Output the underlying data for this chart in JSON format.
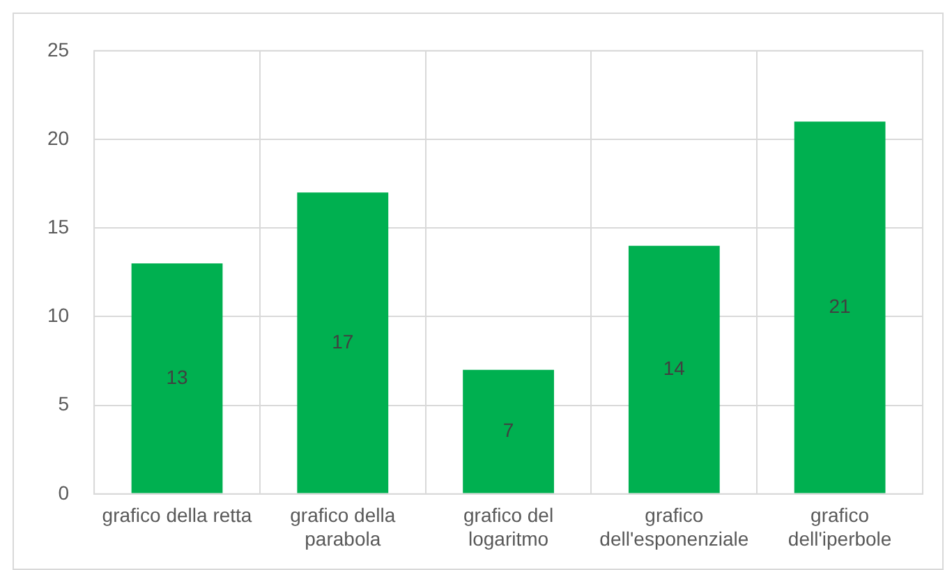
{
  "chart_data": {
    "type": "bar",
    "categories": [
      "grafico della retta",
      "grafico della parabola",
      "grafico del logaritmo",
      "grafico dell'esponenziale",
      "grafico dell'iperbole"
    ],
    "values": [
      13,
      17,
      7,
      14,
      21
    ],
    "color": "#00b050",
    "ylim": [
      0,
      25
    ],
    "yticks": [
      0,
      5,
      10,
      15,
      20,
      25
    ],
    "grid": true,
    "data_labels": true
  }
}
